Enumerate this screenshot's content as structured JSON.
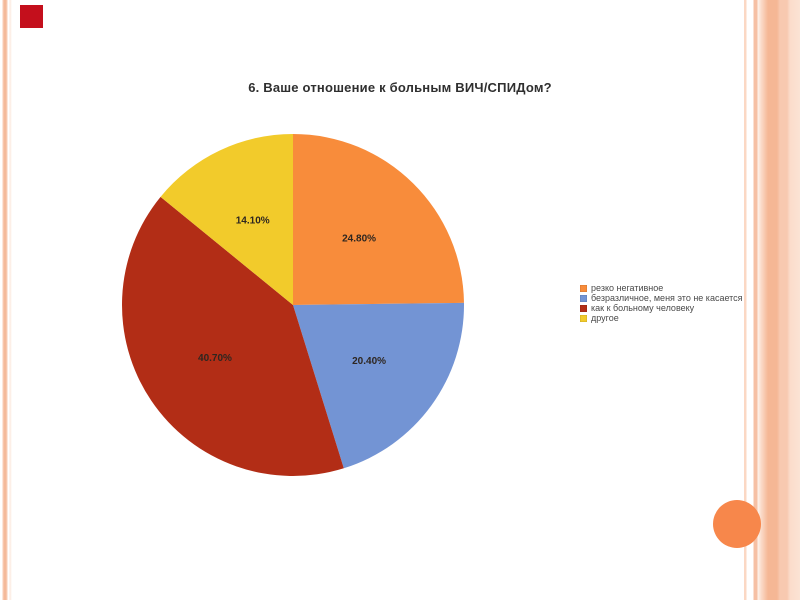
{
  "chart_data": {
    "type": "pie",
    "title": "6. Ваше отношение к больным ВИЧ/СПИДом?",
    "categories": [
      "резко негативное",
      "безразличное, меня это не касается",
      "как к больному человеку",
      "другое"
    ],
    "values": [
      24.8,
      20.4,
      40.7,
      14.1
    ],
    "labels": [
      "24.80%",
      "20.40%",
      "40.70%",
      "14.10%"
    ],
    "colors": [
      "#f88c3b",
      "#7394d4",
      "#b22d16",
      "#f2cb2b"
    ],
    "start_angle_deg": 0,
    "direction": "clockwise",
    "legend_position": "right",
    "label_radius_fraction": 0.55
  },
  "decorations": {
    "slide_number_square_color": "#c40f1c",
    "corner_circle_color": "#f7874b",
    "border_stripe_color": "#f5b795"
  }
}
